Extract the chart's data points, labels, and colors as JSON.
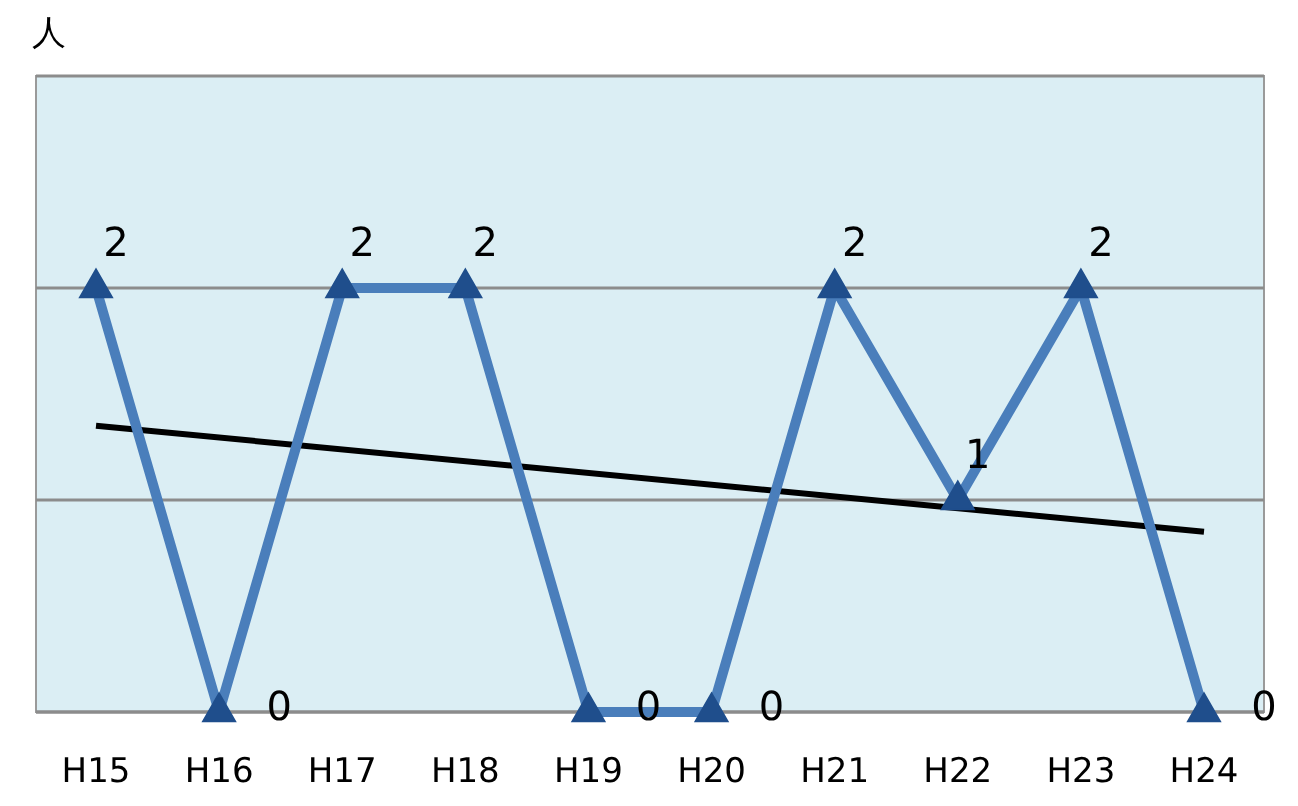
{
  "chart_data": {
    "type": "line",
    "ylabel": "人",
    "categories": [
      "H15",
      "H16",
      "H17",
      "H18",
      "H19",
      "H20",
      "H21",
      "H22",
      "H23",
      "H24"
    ],
    "series": [
      {
        "color": "#4a7ebb",
        "marker": "triangle",
        "values": [
          2,
          0,
          2,
          2,
          0,
          0,
          2,
          1,
          2,
          0
        ],
        "value_labels": [
          "2",
          "0",
          "2",
          "2",
          "0",
          "0",
          "2",
          "1",
          "2",
          "0"
        ]
      },
      {
        "type": "line",
        "color": "#000000",
        "marker": "none",
        "x": [
          "H15",
          "H24"
        ],
        "values": [
          1.35,
          0.85
        ]
      }
    ],
    "ylim": [
      0,
      3
    ],
    "yticks": [
      {
        "value": 0,
        "label": null
      },
      {
        "value": 1,
        "label": null
      },
      {
        "value": 2,
        "label": null
      },
      {
        "value": 3,
        "label": null
      }
    ],
    "grid": "y",
    "tick_labels": "x"
  }
}
